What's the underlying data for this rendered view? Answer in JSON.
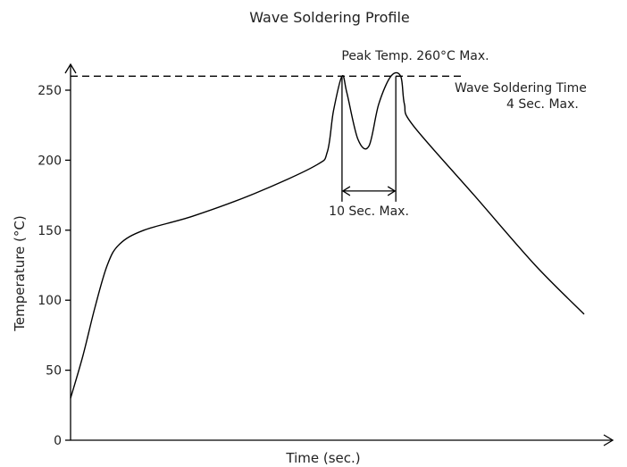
{
  "chart_data": {
    "type": "line",
    "title": "Wave Soldering Profile",
    "xlabel": "Time (sec.)",
    "ylabel": "Temperature (°C)",
    "ylim": [
      0,
      260
    ],
    "yticks": [
      0,
      50,
      100,
      150,
      200,
      250
    ],
    "x_tick_labels": "none",
    "grid": false,
    "series": [
      {
        "name": "",
        "points": [
          [
            0,
            30
          ],
          [
            10,
            60
          ],
          [
            20,
            95
          ],
          [
            30,
            125
          ],
          [
            40,
            140
          ],
          [
            60,
            150
          ],
          [
            100,
            160
          ],
          [
            150,
            176
          ],
          [
            200,
            196
          ],
          [
            210,
            206
          ],
          [
            215,
            235
          ],
          [
            222,
            260
          ],
          [
            226,
            248
          ],
          [
            235,
            215
          ],
          [
            244,
            210
          ],
          [
            252,
            240
          ],
          [
            262,
            260
          ],
          [
            270,
            260
          ],
          [
            273,
            240
          ],
          [
            280,
            225
          ],
          [
            330,
            175
          ],
          [
            380,
            125
          ],
          [
            420,
            90
          ]
        ]
      }
    ],
    "annotations": {
      "peak": "Peak Temp. 260°C Max.",
      "peak_value": 260,
      "wave_time_line1": "Wave Soldering Time",
      "wave_time_line2": "4 Sec. Max.",
      "span_label": "10 Sec. Max.",
      "span_from_x": 222,
      "span_to_x": 266,
      "span_at_y": 178
    }
  }
}
